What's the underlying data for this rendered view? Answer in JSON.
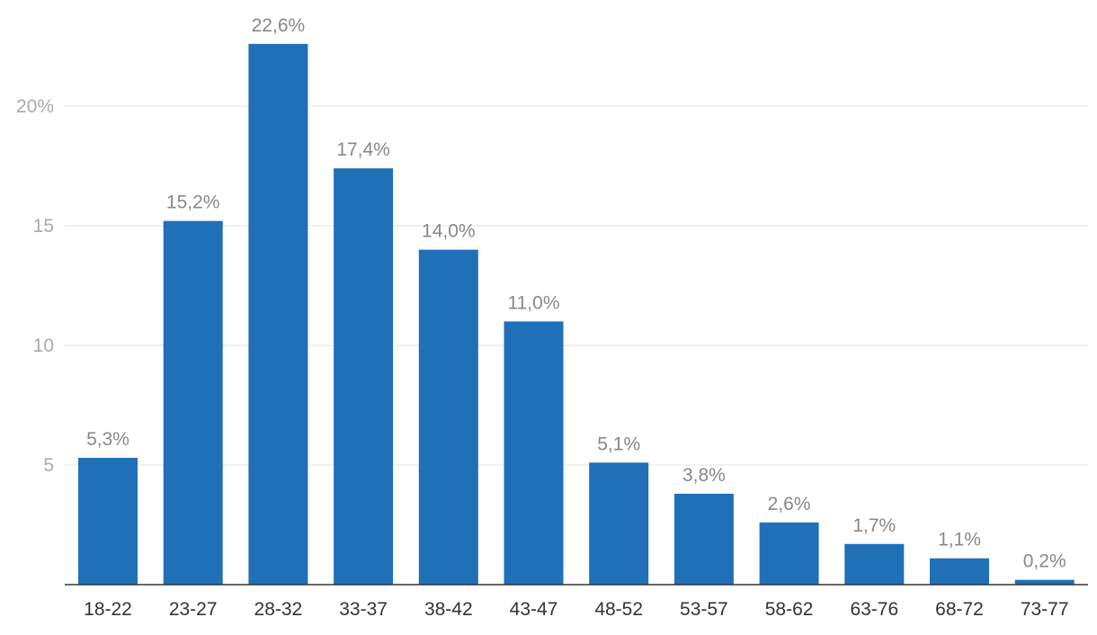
{
  "chart_data": {
    "type": "bar",
    "categories": [
      "18-22",
      "23-27",
      "28-32",
      "33-37",
      "38-42",
      "43-47",
      "48-52",
      "53-57",
      "58-62",
      "63-76",
      "68-72",
      "73-77"
    ],
    "values": [
      5.3,
      15.2,
      22.6,
      17.4,
      14.0,
      11.0,
      5.1,
      3.8,
      2.6,
      1.7,
      1.1,
      0.2
    ],
    "data_labels": [
      "5,3%",
      "15,2%",
      "22,6%",
      "17,4%",
      "14,0%",
      "11,0%",
      "5,1%",
      "3,8%",
      "2,6%",
      "1,7%",
      "1,1%",
      "0,2%"
    ],
    "title": "",
    "xlabel": "",
    "ylabel": "",
    "ylim": [
      0,
      24
    ],
    "y_ticks": [
      {
        "value": 5,
        "label": "5"
      },
      {
        "value": 10,
        "label": "10"
      },
      {
        "value": 15,
        "label": "15"
      },
      {
        "value": 20,
        "label": "20%"
      }
    ],
    "grid": true,
    "legend": "none",
    "bar_color": "#2070b8"
  }
}
